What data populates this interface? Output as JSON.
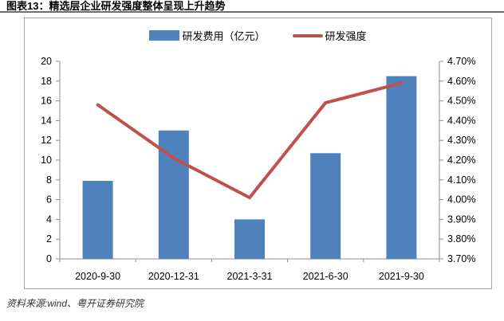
{
  "title": "图表13：精选层企业研发强度整体呈现上升趋势",
  "source": "资料来源:wind、粤开证券研究院",
  "legend": {
    "bar_label": "研发费用（亿元）",
    "line_label": "研发强度"
  },
  "colors": {
    "bar": "#4F81BD",
    "line": "#C0504D",
    "axis": "#8c8c8c",
    "panel_border": "#A6A6A6",
    "tick_text": "#000000"
  },
  "chart_data": {
    "type": "bar+line combo",
    "categories": [
      "2020-9-30",
      "2020-12-31",
      "2021-3-31",
      "2021-6-30",
      "2021-9-30"
    ],
    "series": [
      {
        "name": "研发费用（亿元）",
        "type": "bar",
        "axis": "left",
        "color": "#4F81BD",
        "values": [
          7.9,
          13.0,
          4.0,
          10.7,
          18.5
        ]
      },
      {
        "name": "研发强度",
        "type": "line",
        "axis": "right",
        "color": "#C0504D",
        "values": [
          4.48,
          4.21,
          4.01,
          4.49,
          4.59
        ]
      }
    ],
    "left_axis": {
      "min": 0,
      "max": 20,
      "step": 2,
      "format": "integer"
    },
    "right_axis": {
      "min": 3.7,
      "max": 4.7,
      "step": 0.1,
      "format": "percent",
      "decimals": 2
    },
    "legend_position": "top",
    "grid": false
  }
}
